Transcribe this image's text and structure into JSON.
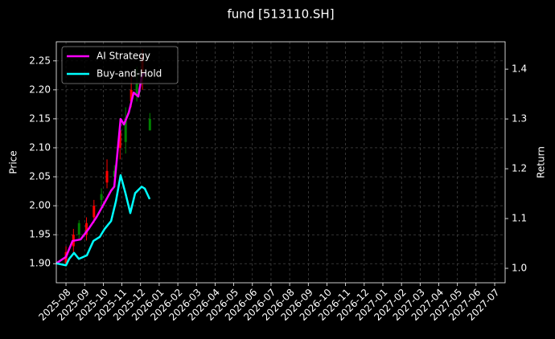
{
  "chart_data": {
    "type": "candlestick",
    "title": "fund [513110.SH]",
    "ylabel": "Price",
    "y2label": "Return",
    "xlim": [
      -0.52,
      23.56
    ],
    "xticks": [
      {
        "value": 0,
        "label": "2025-08"
      },
      {
        "value": 1,
        "label": "2025-09"
      },
      {
        "value": 2,
        "label": "2025-10"
      },
      {
        "value": 3,
        "label": "2025-11"
      },
      {
        "value": 4,
        "label": "2025-12"
      },
      {
        "value": 5,
        "label": "2026-01"
      },
      {
        "value": 6,
        "label": "2026-02"
      },
      {
        "value": 7,
        "label": "2026-03"
      },
      {
        "value": 8,
        "label": "2026-04"
      },
      {
        "value": 9,
        "label": "2026-05"
      },
      {
        "value": 10,
        "label": "2026-06"
      },
      {
        "value": 11,
        "label": "2026-07"
      },
      {
        "value": 12,
        "label": "2026-08"
      },
      {
        "value": 13,
        "label": "2026-09"
      },
      {
        "value": 14,
        "label": "2026-10"
      },
      {
        "value": 15,
        "label": "2026-11"
      },
      {
        "value": 16,
        "label": "2026-12"
      },
      {
        "value": 17,
        "label": "2027-01"
      },
      {
        "value": 18,
        "label": "2027-02"
      },
      {
        "value": 19,
        "label": "2027-03"
      },
      {
        "value": 20,
        "label": "2027-04"
      },
      {
        "value": 21,
        "label": "2027-05"
      },
      {
        "value": 22,
        "label": "2027-06"
      },
      {
        "value": 23,
        "label": "2027-07"
      }
    ],
    "ylim": [
      1.867,
      2.283
    ],
    "yticks": [
      {
        "value": 1.9,
        "label": "1.90"
      },
      {
        "value": 1.95,
        "label": "1.95"
      },
      {
        "value": 2.0,
        "label": "2.00"
      },
      {
        "value": 2.05,
        "label": "2.05"
      },
      {
        "value": 2.1,
        "label": "2.10"
      },
      {
        "value": 2.15,
        "label": "2.15"
      },
      {
        "value": 2.2,
        "label": "2.20"
      },
      {
        "value": 2.25,
        "label": "2.25"
      }
    ],
    "y2lim": [
      0.971,
      1.455
    ],
    "y2ticks": [
      {
        "value": 1.0,
        "label": "1.0"
      },
      1.1,
      1.2,
      1.3,
      1.4
    ],
    "grid": true,
    "legend": "upper left",
    "candles": {
      "up_color": "#ff0000",
      "down_color": "#008000",
      "x": [
        0.0,
        0.4,
        0.7,
        1.1,
        1.5,
        1.9,
        2.2,
        2.6,
        2.9,
        3.2,
        3.5,
        3.8,
        4.1,
        4.5
      ],
      "open": [
        1.9,
        1.93,
        1.97,
        1.95,
        1.98,
        2.02,
        2.04,
        2.06,
        2.1,
        2.15,
        2.18,
        2.21,
        2.22,
        2.15
      ],
      "close": [
        1.92,
        1.95,
        1.95,
        1.97,
        2.0,
        2.01,
        2.06,
        2.05,
        2.13,
        2.11,
        2.2,
        2.19,
        2.26,
        2.13
      ],
      "high": [
        1.93,
        1.96,
        1.975,
        1.98,
        2.01,
        2.03,
        2.08,
        2.07,
        2.15,
        2.17,
        2.23,
        2.24,
        2.27,
        2.16
      ],
      "low": [
        1.9,
        1.92,
        1.94,
        1.94,
        1.97,
        2.0,
        2.03,
        2.04,
        2.08,
        2.09,
        2.17,
        2.18,
        2.2,
        2.13
      ]
    },
    "series": [
      {
        "name": "AI Strategy",
        "color": "#ff00ff",
        "axis": "y2",
        "x": [
          -0.52,
          0,
          0.35,
          0.78,
          1.21,
          1.64,
          2.07,
          2.42,
          2.59,
          2.76,
          2.93,
          3.11,
          3.37,
          3.63,
          3.88,
          4.06,
          4.23
        ],
        "values": [
          1.01,
          1.023,
          1.055,
          1.058,
          1.079,
          1.103,
          1.132,
          1.156,
          1.164,
          1.232,
          1.3,
          1.289,
          1.313,
          1.353,
          1.345,
          1.385,
          1.394
        ]
      },
      {
        "name": "Buy-and-Hold",
        "color": "#00ffff",
        "axis": "y2",
        "x": [
          -0.52,
          0,
          0.17,
          0.43,
          0.69,
          1.12,
          1.47,
          1.81,
          2.07,
          2.42,
          2.68,
          2.93,
          3.19,
          3.45,
          3.71,
          4.06,
          4.23,
          4.49
        ],
        "values": [
          1.01,
          1.006,
          1.019,
          1.031,
          1.019,
          1.026,
          1.055,
          1.063,
          1.079,
          1.095,
          1.135,
          1.187,
          1.151,
          1.111,
          1.151,
          1.164,
          1.16,
          1.139
        ]
      }
    ]
  }
}
